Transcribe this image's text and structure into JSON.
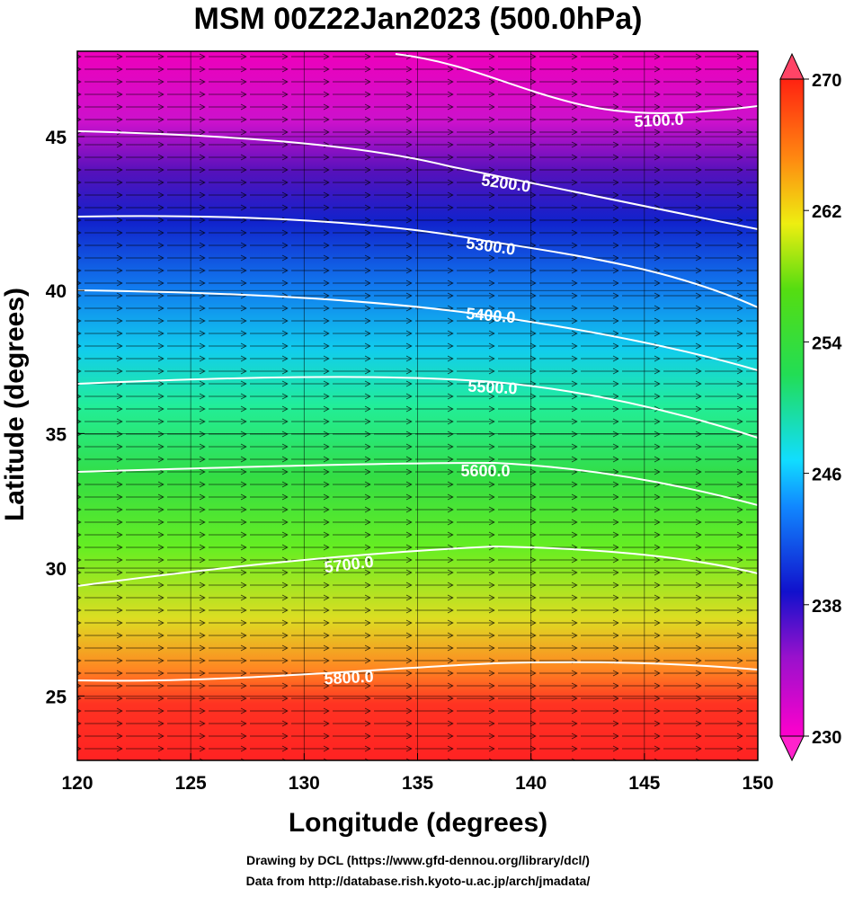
{
  "map": {
    "title": "MSM 00Z22Jan2023 (500.0hPa)",
    "xlabel": "Longitude (degrees)",
    "ylabel": "Latitude  (degrees)",
    "xlim": [
      120,
      150
    ],
    "xticks": [
      120,
      125,
      130,
      135,
      140,
      145,
      150
    ],
    "ylim": [
      22.4,
      47.6
    ],
    "yticks": [
      25,
      30,
      35,
      40,
      45
    ],
    "colorbar": {
      "lim": [
        230,
        270
      ],
      "ticks": [
        230,
        238,
        246,
        254,
        262,
        270
      ]
    },
    "contour_labels": [
      "5100.0",
      "5200.0",
      "5300.0",
      "5400.0",
      "5500.0",
      "5600.0",
      "5700.0",
      "5800.0"
    ],
    "credits": [
      "Drawing by DCL (https://www.gfd-dennou.org/library/dcl/)",
      "Data from http://database.rish.kyoto-u.ac.jp/arch/jmadata/"
    ]
  }
}
